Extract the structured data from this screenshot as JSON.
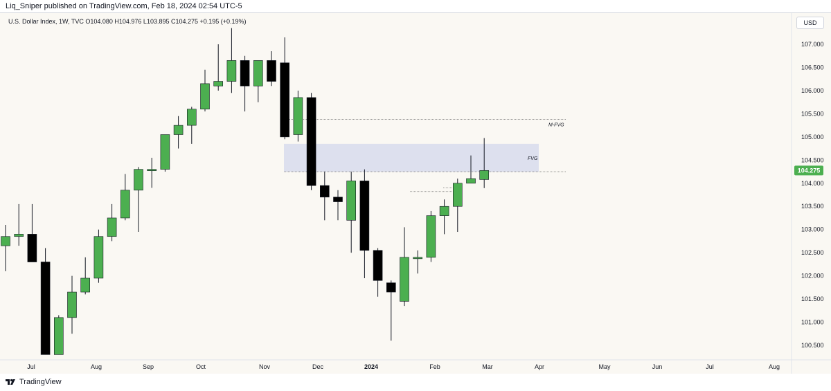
{
  "header": {
    "publisher": "Liq_Sniper published on TradingView.com, Feb 18, 2024 02:54 UTC-5"
  },
  "symbol_info": "U.S. Dollar Index, 1W, TVC  O104.080  H104.976  L103.895  C104.275  +0.195 (+0.19%)",
  "currency_button": "USD",
  "footer": {
    "brand": "TradingView"
  },
  "colors": {
    "up": "#4caf50",
    "down": "#000000",
    "wick": "#131722",
    "fvg_fill": "#dde0ee",
    "price_label": "#4caf50",
    "background": "#faf8f3"
  },
  "chart_data": {
    "type": "candlestick",
    "title": "U.S. Dollar Index, 1W, TVC",
    "ylim": [
      100.2,
      107.4
    ],
    "y_ticks": [
      "107.000",
      "106.500",
      "106.000",
      "105.500",
      "105.000",
      "104.500",
      "104.000",
      "103.500",
      "103.000",
      "102.500",
      "102.000",
      "101.500",
      "101.000",
      "100.500"
    ],
    "last_price_label": "104.275",
    "x_ticks": [
      "Jul",
      "Aug",
      "Sep",
      "Oct",
      "Nov",
      "Dec",
      "2024",
      "Feb",
      "Mar",
      "Apr",
      "May",
      "Jun",
      "Jul",
      "Aug"
    ],
    "candles": [
      {
        "o": 102.65,
        "h": 103.1,
        "l": 102.1,
        "c": 102.85
      },
      {
        "o": 102.85,
        "h": 103.55,
        "l": 102.65,
        "c": 102.9
      },
      {
        "o": 102.9,
        "h": 103.55,
        "l": 102.35,
        "c": 102.3
      },
      {
        "o": 102.3,
        "h": 102.6,
        "l": 100.3,
        "c": 100.3
      },
      {
        "o": 100.3,
        "h": 101.15,
        "l": 100.3,
        "c": 101.1
      },
      {
        "o": 101.1,
        "h": 102.0,
        "l": 100.75,
        "c": 101.65
      },
      {
        "o": 101.65,
        "h": 102.4,
        "l": 101.6,
        "c": 101.95
      },
      {
        "o": 101.95,
        "h": 103.0,
        "l": 101.85,
        "c": 102.85
      },
      {
        "o": 102.85,
        "h": 103.55,
        "l": 102.75,
        "c": 103.25
      },
      {
        "o": 103.25,
        "h": 104.2,
        "l": 103.2,
        "c": 103.85
      },
      {
        "o": 103.85,
        "h": 104.35,
        "l": 102.95,
        "c": 104.3
      },
      {
        "o": 104.3,
        "h": 104.55,
        "l": 103.9,
        "c": 104.3
      },
      {
        "o": 104.3,
        "h": 105.05,
        "l": 104.25,
        "c": 105.05
      },
      {
        "o": 105.05,
        "h": 105.45,
        "l": 104.75,
        "c": 105.25
      },
      {
        "o": 105.25,
        "h": 105.65,
        "l": 104.85,
        "c": 105.6
      },
      {
        "o": 105.6,
        "h": 106.45,
        "l": 105.55,
        "c": 106.15
      },
      {
        "o": 106.1,
        "h": 107.0,
        "l": 106.0,
        "c": 106.2
      },
      {
        "o": 106.2,
        "h": 107.35,
        "l": 105.95,
        "c": 106.65
      },
      {
        "o": 106.65,
        "h": 106.75,
        "l": 105.55,
        "c": 106.1
      },
      {
        "o": 106.1,
        "h": 106.65,
        "l": 105.75,
        "c": 106.65
      },
      {
        "o": 106.65,
        "h": 106.85,
        "l": 106.1,
        "c": 106.2
      },
      {
        "o": 106.6,
        "h": 107.15,
        "l": 104.95,
        "c": 105.0
      },
      {
        "o": 105.05,
        "h": 106.0,
        "l": 104.9,
        "c": 105.85
      },
      {
        "o": 105.85,
        "h": 105.95,
        "l": 103.85,
        "c": 103.95
      },
      {
        "o": 103.95,
        "h": 104.25,
        "l": 103.2,
        "c": 103.7
      },
      {
        "o": 103.7,
        "h": 103.85,
        "l": 103.2,
        "c": 103.6
      },
      {
        "o": 103.2,
        "h": 104.25,
        "l": 102.5,
        "c": 104.05
      },
      {
        "o": 104.05,
        "h": 104.3,
        "l": 101.95,
        "c": 102.55
      },
      {
        "o": 102.55,
        "h": 102.6,
        "l": 101.55,
        "c": 101.9
      },
      {
        "o": 101.85,
        "h": 101.9,
        "l": 100.6,
        "c": 101.65
      },
      {
        "o": 101.45,
        "h": 103.05,
        "l": 101.35,
        "c": 102.4
      },
      {
        "o": 102.4,
        "h": 102.55,
        "l": 102.05,
        "c": 102.4
      },
      {
        "o": 102.4,
        "h": 103.4,
        "l": 102.3,
        "c": 103.3
      },
      {
        "o": 103.3,
        "h": 103.65,
        "l": 102.9,
        "c": 103.5
      },
      {
        "o": 103.5,
        "h": 104.1,
        "l": 102.95,
        "c": 104.0
      },
      {
        "o": 104.0,
        "h": 104.6,
        "l": 104.0,
        "c": 104.1
      },
      {
        "o": 104.08,
        "h": 104.976,
        "l": 103.895,
        "c": 104.275
      }
    ],
    "zones": [
      {
        "label": "FVG",
        "top": 104.85,
        "bottom": 104.25
      },
      {
        "label": "M-FVG",
        "level": 105.38
      }
    ]
  }
}
